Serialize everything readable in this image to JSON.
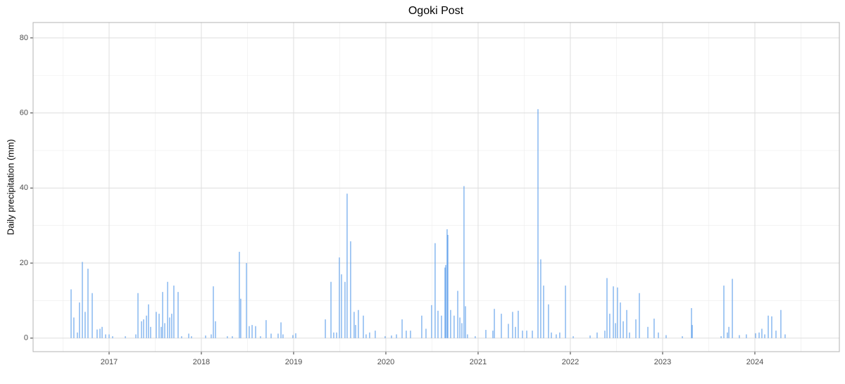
{
  "chart_data": {
    "type": "bar",
    "title": "Ogoki Post",
    "y_label": "Daily precipitation (mm)",
    "color": "#6aa6ec",
    "grid": true,
    "xlim": [
      2016.176,
      2024.916
    ],
    "xticks": [
      2017,
      2018,
      2019,
      2020,
      2021,
      2022,
      2023,
      2024
    ],
    "ylim": [
      -3.6,
      84.1
    ],
    "yticks": [
      0,
      20,
      40,
      60,
      80
    ],
    "x": [
      2016.588,
      2016.618,
      2016.656,
      2016.679,
      2016.71,
      2016.74,
      2016.771,
      2016.817,
      2016.87,
      2016.901,
      2016.924,
      2016.962,
      2017.0,
      2017.038,
      2017.176,
      2017.29,
      2017.313,
      2017.351,
      2017.374,
      2017.405,
      2017.427,
      2017.45,
      2017.511,
      2017.542,
      2017.565,
      2017.58,
      2017.603,
      2017.634,
      2017.656,
      2017.679,
      2017.702,
      2017.748,
      2017.786,
      2017.863,
      2017.893,
      2018.046,
      2018.107,
      2018.13,
      2018.153,
      2018.282,
      2018.336,
      2018.412,
      2018.427,
      2018.489,
      2018.519,
      2018.55,
      2018.588,
      2018.641,
      2018.702,
      2018.756,
      2018.832,
      2018.863,
      2018.885,
      2018.992,
      2019.023,
      2019.344,
      2019.405,
      2019.435,
      2019.466,
      2019.496,
      2019.519,
      2019.557,
      2019.58,
      2019.618,
      2019.656,
      2019.672,
      2019.702,
      2019.756,
      2019.786,
      2019.824,
      2019.885,
      2019.992,
      2020.061,
      2020.115,
      2020.176,
      2020.221,
      2020.267,
      2020.389,
      2020.435,
      2020.496,
      2020.534,
      2020.565,
      2020.603,
      2020.641,
      2020.649,
      2020.664,
      2020.672,
      2020.702,
      2020.74,
      2020.779,
      2020.802,
      2020.824,
      2020.847,
      2020.863,
      2020.885,
      2020.969,
      2021.084,
      2021.16,
      2021.176,
      2021.252,
      2021.328,
      2021.374,
      2021.405,
      2021.435,
      2021.481,
      2021.527,
      2021.588,
      2021.649,
      2021.679,
      2021.71,
      2021.763,
      2021.794,
      2021.847,
      2021.885,
      2021.947,
      2022.031,
      2022.214,
      2022.29,
      2022.374,
      2022.397,
      2022.427,
      2022.466,
      2022.489,
      2022.511,
      2022.542,
      2022.573,
      2022.611,
      2022.641,
      2022.71,
      2022.748,
      2022.84,
      2022.908,
      2022.954,
      2023.038,
      2023.214,
      2023.313,
      2023.321,
      2023.634,
      2023.664,
      2023.702,
      2023.718,
      2023.756,
      2023.832,
      2023.908,
      2024.008,
      2024.046,
      2024.076,
      2024.107,
      2024.145,
      2024.183,
      2024.229,
      2024.282,
      2024.328
    ],
    "values": [
      13,
      5.5,
      1.5,
      9.5,
      20.3,
      7,
      18.5,
      12,
      2.3,
      2.5,
      3,
      1,
      1,
      0.5,
      0.5,
      1,
      12,
      4.5,
      5,
      6,
      9,
      3,
      7,
      6.5,
      3,
      12.3,
      4,
      15,
      5.5,
      6.5,
      14,
      12.3,
      0.5,
      1.2,
      0.5,
      0.7,
      1,
      13.8,
      4.5,
      0.5,
      0.5,
      23,
      10.5,
      20,
      3.2,
      3.5,
      3.2,
      0.5,
      4.8,
      1.2,
      1.2,
      4.2,
      1,
      0.8,
      1.3,
      5,
      15,
      1.5,
      1.5,
      21.5,
      17,
      15,
      38.5,
      25.8,
      7,
      3.5,
      7.5,
      6,
      1,
      1.5,
      2,
      0.5,
      0.7,
      1,
      5,
      2,
      2,
      6,
      2.5,
      8.8,
      25.3,
      7.3,
      6,
      18.8,
      19.5,
      29,
      27.5,
      7.5,
      6,
      12.6,
      5.5,
      4,
      40.5,
      8.5,
      1,
      0.5,
      2.2,
      2,
      7.8,
      6.5,
      3.8,
      7,
      3,
      7.3,
      2,
      2,
      2,
      61,
      21,
      14,
      9,
      1.5,
      1,
      1.5,
      14,
      0.5,
      0.7,
      1.5,
      2,
      16,
      6.5,
      13.8,
      4,
      13.5,
      9.5,
      4.5,
      7.5,
      1.5,
      5,
      12,
      3,
      5.2,
      1.5,
      0.8,
      0.5,
      8,
      3.5,
      0.5,
      14,
      1.5,
      3,
      15.8,
      0.8,
      1,
      1.3,
      1.5,
      2.5,
      1,
      6,
      5.8,
      2,
      7.5,
      1
    ]
  }
}
